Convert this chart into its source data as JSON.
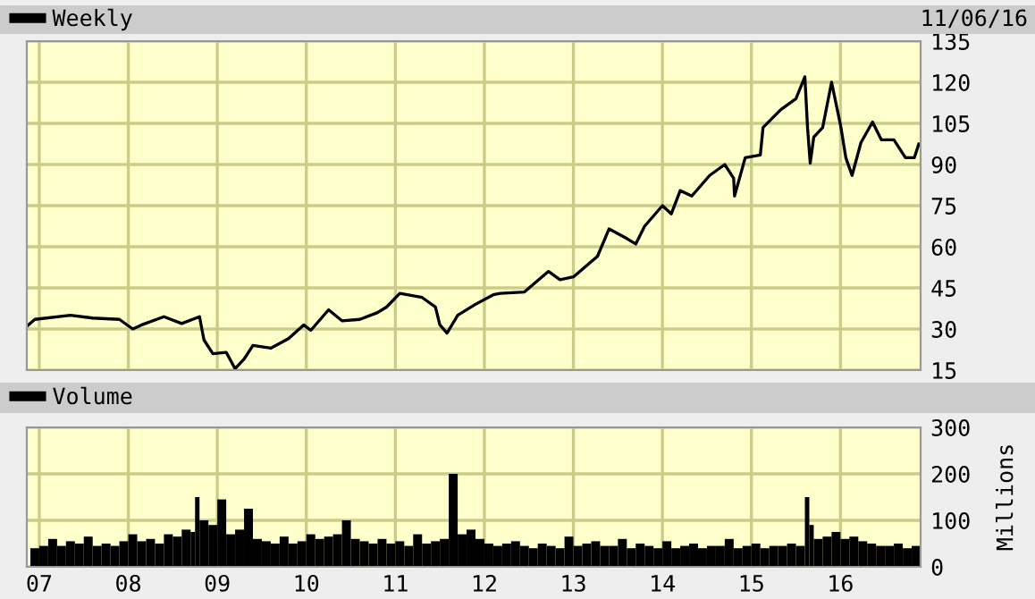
{
  "chart_data": [
    {
      "type": "line",
      "legend": "top left",
      "grid": true,
      "tick_labels": "y",
      "annotations": [
        "11/06/16"
      ],
      "xlim": [
        2006.86,
        2016.9
      ],
      "xticks": [
        {
          "value": 2007,
          "label": null
        },
        {
          "value": 2008,
          "label": null
        },
        {
          "value": 2009,
          "label": null
        },
        {
          "value": 2010,
          "label": null
        },
        {
          "value": 2011,
          "label": null
        },
        {
          "value": 2012,
          "label": null
        },
        {
          "value": 2013,
          "label": null
        },
        {
          "value": 2014,
          "label": null
        },
        {
          "value": 2015,
          "label": null
        },
        {
          "value": 2016,
          "label": null
        }
      ],
      "ylim": [
        15,
        135
      ],
      "yticks": [
        15,
        30,
        45,
        60,
        75,
        90,
        105,
        120,
        135
      ],
      "series": [
        {
          "name": "Weekly",
          "color": "#000000",
          "x": [
            2006.86,
            2006.95,
            2007.35,
            2007.6,
            2007.9,
            2008.05,
            2008.15,
            2008.4,
            2008.6,
            2008.8,
            2008.85,
            2008.95,
            2009.1,
            2009.2,
            2009.3,
            2009.4,
            2009.6,
            2009.8,
            2009.97,
            2010.05,
            2010.25,
            2010.4,
            2010.6,
            2010.8,
            2010.9,
            2011.05,
            2011.3,
            2011.45,
            2011.5,
            2011.58,
            2011.7,
            2011.9,
            2012.1,
            2012.18,
            2012.45,
            2012.72,
            2012.85,
            2013.0,
            2013.27,
            2013.4,
            2013.6,
            2013.7,
            2013.8,
            2014.0,
            2014.1,
            2014.2,
            2014.33,
            2014.53,
            2014.7,
            2014.8,
            2014.81,
            2014.93,
            2015.1,
            2015.13,
            2015.33,
            2015.5,
            2015.6,
            2015.63,
            2015.66,
            2015.7,
            2015.8,
            2015.9,
            2016.0,
            2016.06,
            2016.13,
            2016.23,
            2016.36,
            2016.46,
            2016.6,
            2016.73,
            2016.83,
            2016.88
          ],
          "values": [
            31,
            33.5,
            35,
            34,
            33.5,
            30,
            31.5,
            34.5,
            32,
            34.5,
            26,
            21,
            21.5,
            15.5,
            19,
            24,
            23,
            26.5,
            31.5,
            29.5,
            37,
            33,
            33.5,
            36,
            38,
            43,
            41.5,
            38,
            31.5,
            28.5,
            35,
            39,
            42.5,
            43,
            43.5,
            51,
            48,
            49,
            56.5,
            66.5,
            63,
            61,
            67.5,
            75,
            72,
            80.5,
            78.5,
            86,
            90,
            85,
            78.5,
            92.5,
            93.5,
            103.5,
            110,
            114,
            122,
            103.5,
            90.5,
            100,
            103.5,
            120,
            104.5,
            92.5,
            86,
            98,
            105.5,
            99,
            99,
            92.5,
            92.5,
            97.5
          ]
        }
      ]
    },
    {
      "type": "bar",
      "legend": "top left",
      "grid": true,
      "ylabel": "Millions",
      "xlim": [
        2006.86,
        2016.9
      ],
      "xticks": [
        {
          "value": 2007,
          "label": "07"
        },
        {
          "value": 2008,
          "label": "08"
        },
        {
          "value": 2009,
          "label": "09"
        },
        {
          "value": 2010,
          "label": "10"
        },
        {
          "value": 2011,
          "label": "11"
        },
        {
          "value": 2012,
          "label": "12"
        },
        {
          "value": 2013,
          "label": "13"
        },
        {
          "value": 2014,
          "label": "14"
        },
        {
          "value": 2015,
          "label": "15"
        },
        {
          "value": 2016,
          "label": "16"
        }
      ],
      "ylim": [
        0,
        300
      ],
      "yticks": [
        0,
        100,
        200,
        300
      ],
      "series": [
        {
          "name": "Volume",
          "color": "#000000",
          "x": [
            2006.9,
            2007.0,
            2007.1,
            2007.2,
            2007.3,
            2007.4,
            2007.5,
            2007.6,
            2007.7,
            2007.8,
            2007.9,
            2008.0,
            2008.1,
            2008.2,
            2008.3,
            2008.4,
            2008.5,
            2008.6,
            2008.7,
            2008.75,
            2008.8,
            2008.9,
            2009.0,
            2009.1,
            2009.2,
            2009.3,
            2009.4,
            2009.5,
            2009.6,
            2009.7,
            2009.8,
            2009.9,
            2010.0,
            2010.1,
            2010.2,
            2010.3,
            2010.4,
            2010.5,
            2010.6,
            2010.7,
            2010.8,
            2010.9,
            2011.0,
            2011.1,
            2011.2,
            2011.3,
            2011.4,
            2011.5,
            2011.6,
            2011.7,
            2011.8,
            2011.9,
            2012.0,
            2012.1,
            2012.2,
            2012.3,
            2012.4,
            2012.5,
            2012.6,
            2012.7,
            2012.8,
            2012.9,
            2013.0,
            2013.1,
            2013.2,
            2013.3,
            2013.4,
            2013.5,
            2013.6,
            2013.7,
            2013.8,
            2013.9,
            2014.0,
            2014.1,
            2014.2,
            2014.3,
            2014.4,
            2014.5,
            2014.6,
            2014.7,
            2014.8,
            2014.9,
            2015.0,
            2015.1,
            2015.2,
            2015.3,
            2015.4,
            2015.5,
            2015.6,
            2015.65,
            2015.7,
            2015.8,
            2015.9,
            2016.0,
            2016.1,
            2016.2,
            2016.3,
            2016.4,
            2016.5,
            2016.6,
            2016.7,
            2016.8
          ],
          "values": [
            40,
            45,
            60,
            45,
            55,
            50,
            65,
            45,
            50,
            45,
            55,
            70,
            55,
            60,
            50,
            70,
            65,
            80,
            75,
            150,
            100,
            90,
            145,
            70,
            80,
            125,
            60,
            55,
            50,
            65,
            50,
            55,
            70,
            60,
            65,
            70,
            100,
            60,
            55,
            50,
            60,
            50,
            55,
            45,
            70,
            50,
            55,
            60,
            200,
            70,
            80,
            60,
            50,
            45,
            50,
            55,
            45,
            40,
            50,
            45,
            40,
            65,
            45,
            50,
            55,
            45,
            45,
            60,
            40,
            50,
            45,
            40,
            55,
            40,
            45,
            50,
            40,
            45,
            45,
            60,
            40,
            45,
            50,
            40,
            45,
            45,
            50,
            45,
            150,
            90,
            60,
            65,
            75,
            60,
            65,
            55,
            50,
            45,
            45,
            50,
            40,
            45
          ]
        }
      ]
    }
  ]
}
